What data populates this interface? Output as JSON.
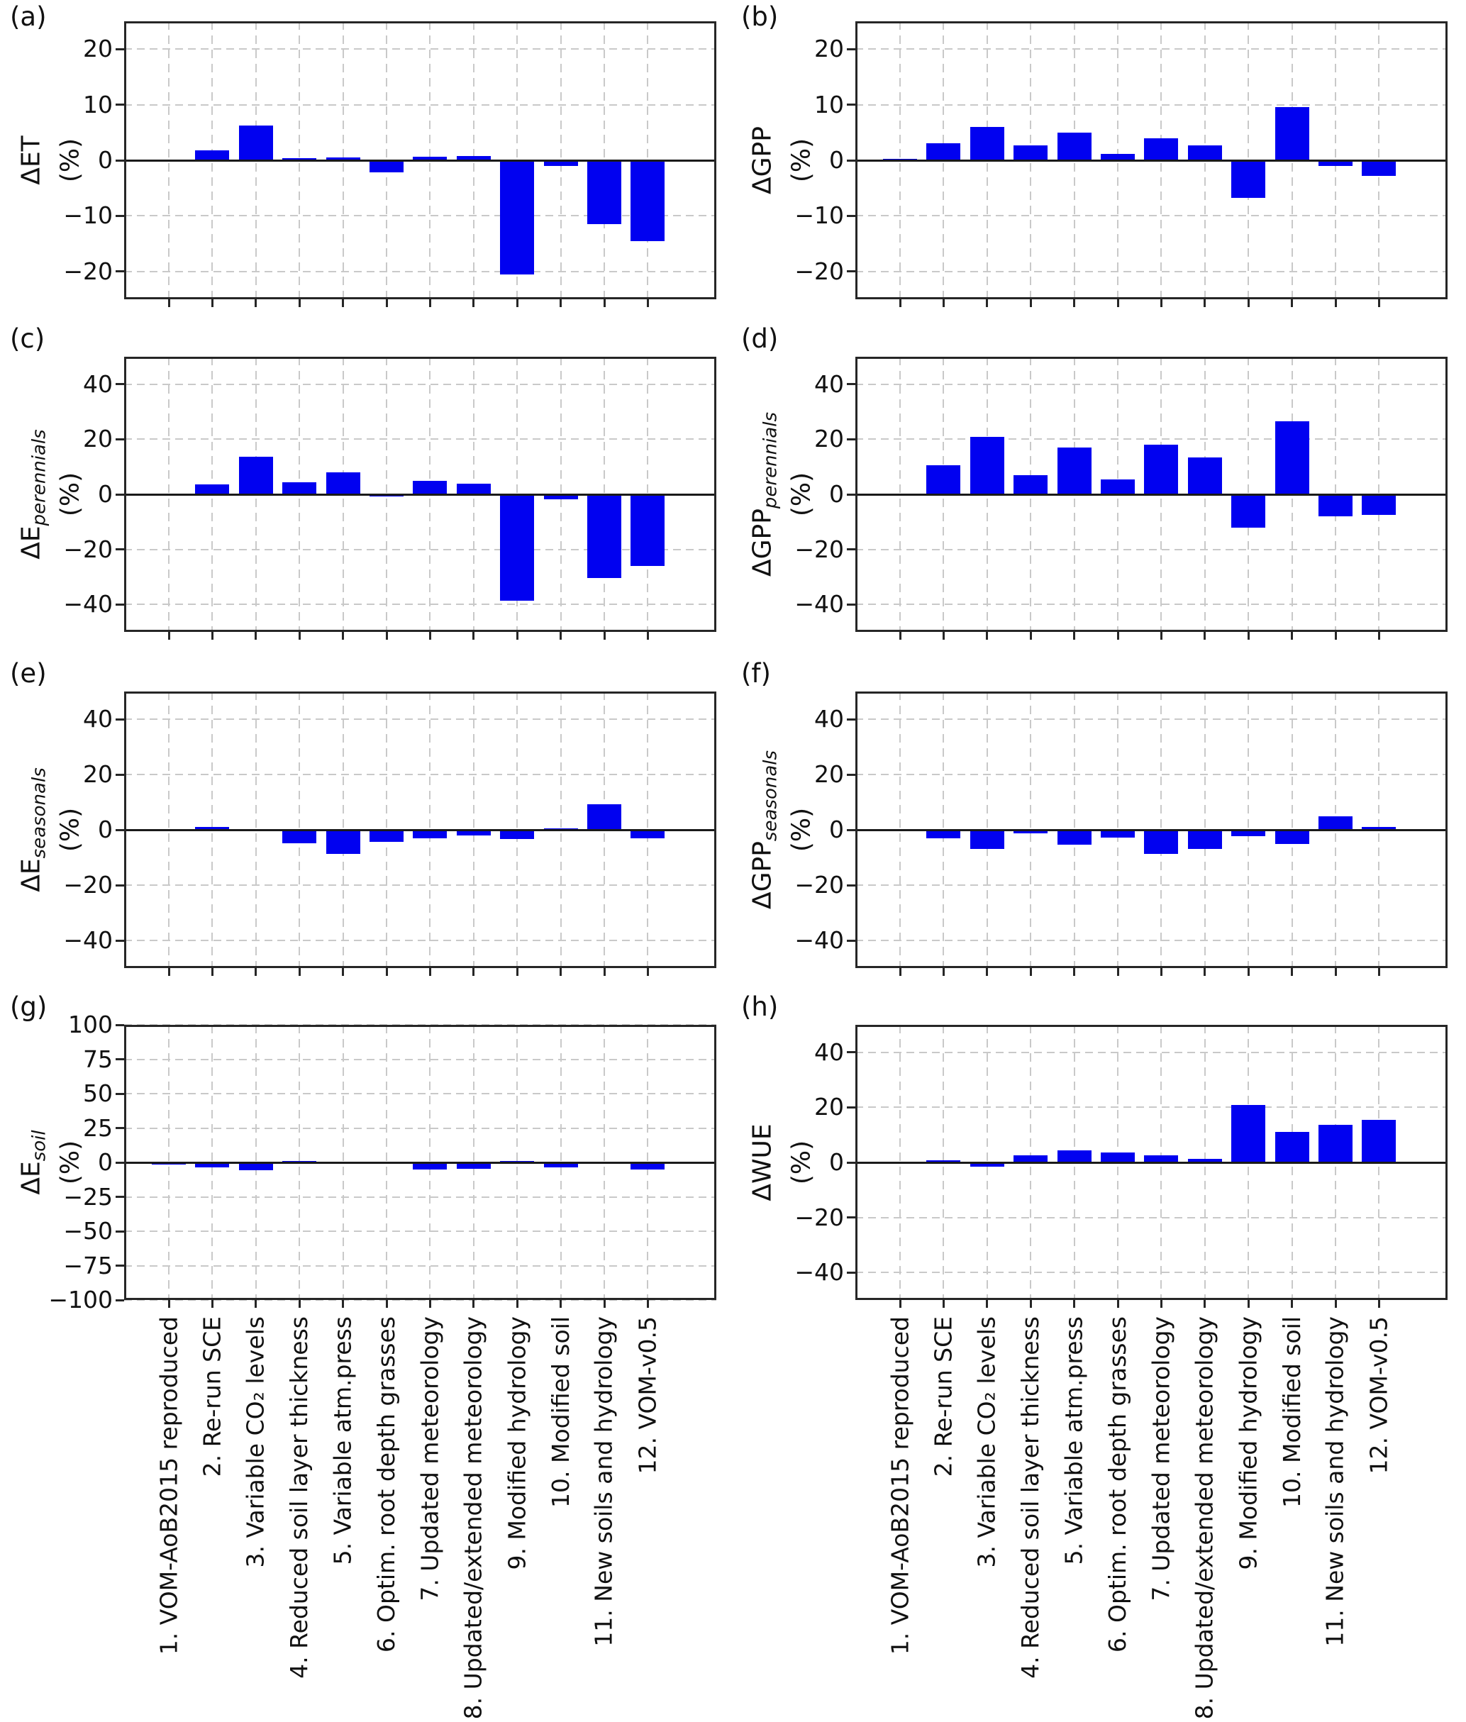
{
  "figure": {
    "background": "#ffffff",
    "bar_color": "#0101f0",
    "grid_color": "#c9c9c9",
    "axis_color": "#262626"
  },
  "chart_data": {
    "type": "bar",
    "title": "",
    "grid": true,
    "categories": [
      "1. VOM-AoB2015 reproduced",
      "2. Re-run SCE",
      "3. Variable CO₂ levels",
      "4. Reduced soil layer thickness",
      "5. Variable atm.press",
      "6. Optim. root depth grasses",
      "7. Updated meteorology",
      "8. Updated/extended meteorology",
      "9. Modified hydrology",
      "10. Modified soil",
      "11. New soils and hydrology",
      "12. VOM-v0.5"
    ],
    "panels": [
      {
        "letter": "(a)",
        "ylabel_base": "ΔET",
        "ylabel_sub": "",
        "ylabel_unit": "(%)",
        "ylim": [
          -25,
          25
        ],
        "yticks": [
          20,
          10,
          0,
          -10,
          -20
        ],
        "values": [
          0.1,
          1.8,
          6.2,
          0.4,
          0.5,
          -2.2,
          0.6,
          0.8,
          -20.5,
          -1.0,
          -11.5,
          -14.5
        ]
      },
      {
        "letter": "(b)",
        "ylabel_base": "ΔGPP",
        "ylabel_sub": "",
        "ylabel_unit": "(%)",
        "ylim": [
          -25,
          25
        ],
        "yticks": [
          20,
          10,
          0,
          -10,
          -20
        ],
        "values": [
          0.2,
          3.0,
          6.0,
          2.7,
          5.0,
          1.1,
          4.0,
          2.7,
          -6.8,
          9.6,
          -1.0,
          -2.8
        ]
      },
      {
        "letter": "(c)",
        "ylabel_base": "ΔE",
        "ylabel_sub": "perennials",
        "ylabel_unit": "(%)",
        "ylim": [
          -50,
          50
        ],
        "yticks": [
          40,
          20,
          0,
          -20,
          -40
        ],
        "values": [
          0.1,
          3.7,
          13.7,
          4.3,
          8.0,
          -0.7,
          4.8,
          3.9,
          -38.7,
          -1.8,
          -30.5,
          -26.0
        ]
      },
      {
        "letter": "(d)",
        "ylabel_base": "ΔGPP",
        "ylabel_sub": "perennials",
        "ylabel_unit": "(%)",
        "ylim": [
          -50,
          50
        ],
        "yticks": [
          40,
          20,
          0,
          -20,
          -40
        ],
        "values": [
          0.1,
          10.5,
          21.0,
          7.0,
          17.0,
          5.5,
          18.0,
          13.5,
          -12.0,
          26.5,
          -8.0,
          -7.5
        ]
      },
      {
        "letter": "(e)",
        "ylabel_base": "ΔE",
        "ylabel_sub": "seasonals",
        "ylabel_unit": "(%)",
        "ylim": [
          -50,
          50
        ],
        "yticks": [
          40,
          20,
          0,
          -20,
          -40
        ],
        "values": [
          0.0,
          1.0,
          0.0,
          -4.8,
          -8.7,
          -4.3,
          -3.0,
          -2.0,
          -3.3,
          0.4,
          9.2,
          -3.0
        ]
      },
      {
        "letter": "(f)",
        "ylabel_base": "ΔGPP",
        "ylabel_sub": "seasonals",
        "ylabel_unit": "(%)",
        "ylim": [
          -50,
          50
        ],
        "yticks": [
          40,
          20,
          0,
          -20,
          -40
        ],
        "values": [
          0.0,
          -3.0,
          -7.0,
          -1.3,
          -5.5,
          -2.8,
          -8.8,
          -7.0,
          -2.2,
          -5.2,
          5.0,
          1.0
        ]
      },
      {
        "letter": "(g)",
        "ylabel_base": "ΔE",
        "ylabel_sub": "soil",
        "ylabel_unit": "(%)",
        "ylim": [
          -100,
          100
        ],
        "yticks": [
          100,
          75,
          50,
          25,
          0,
          -25,
          -50,
          -75,
          -100
        ],
        "values": [
          -1.5,
          -3.5,
          -5.5,
          1.0,
          -1.0,
          -1.0,
          -5.0,
          -4.5,
          1.0,
          -3.5,
          -0.5,
          -5.0
        ]
      },
      {
        "letter": "(h)",
        "ylabel_base": "ΔWUE",
        "ylabel_sub": "",
        "ylabel_unit": "(%)",
        "ylim": [
          -50,
          50
        ],
        "yticks": [
          40,
          20,
          0,
          -20,
          -40
        ],
        "values": [
          0.1,
          0.7,
          -1.5,
          2.5,
          4.5,
          3.5,
          2.7,
          1.3,
          21.0,
          11.0,
          13.7,
          15.5
        ]
      }
    ]
  }
}
